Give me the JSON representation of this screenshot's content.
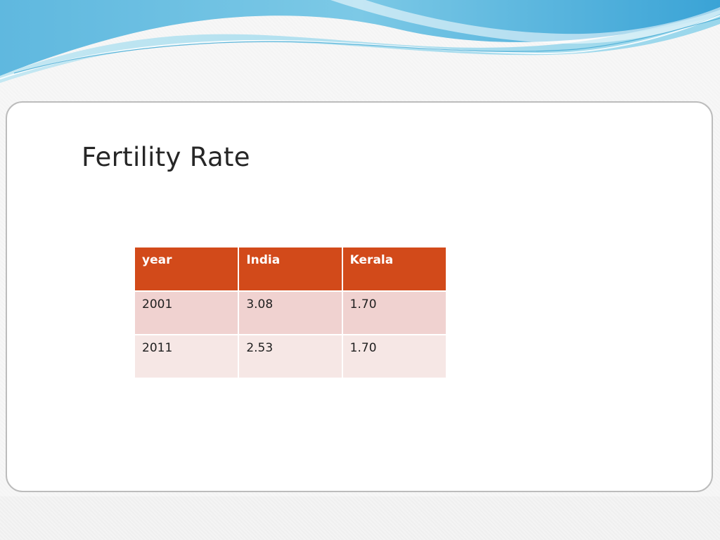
{
  "slide": {
    "title": "Fertility Rate",
    "accent_colors": {
      "header_wave_dark": "#3aa7d8",
      "header_wave_light": "#a8ddee",
      "table_header": "#d24a1a",
      "table_row_odd": "#f0d2d0",
      "table_row_even": "#f6e7e5"
    }
  },
  "table": {
    "headers": [
      "year",
      "India",
      "Kerala"
    ],
    "rows": [
      [
        "2001",
        "3.08",
        "1.70"
      ],
      [
        "2011",
        "2.53",
        "1.70"
      ]
    ]
  }
}
